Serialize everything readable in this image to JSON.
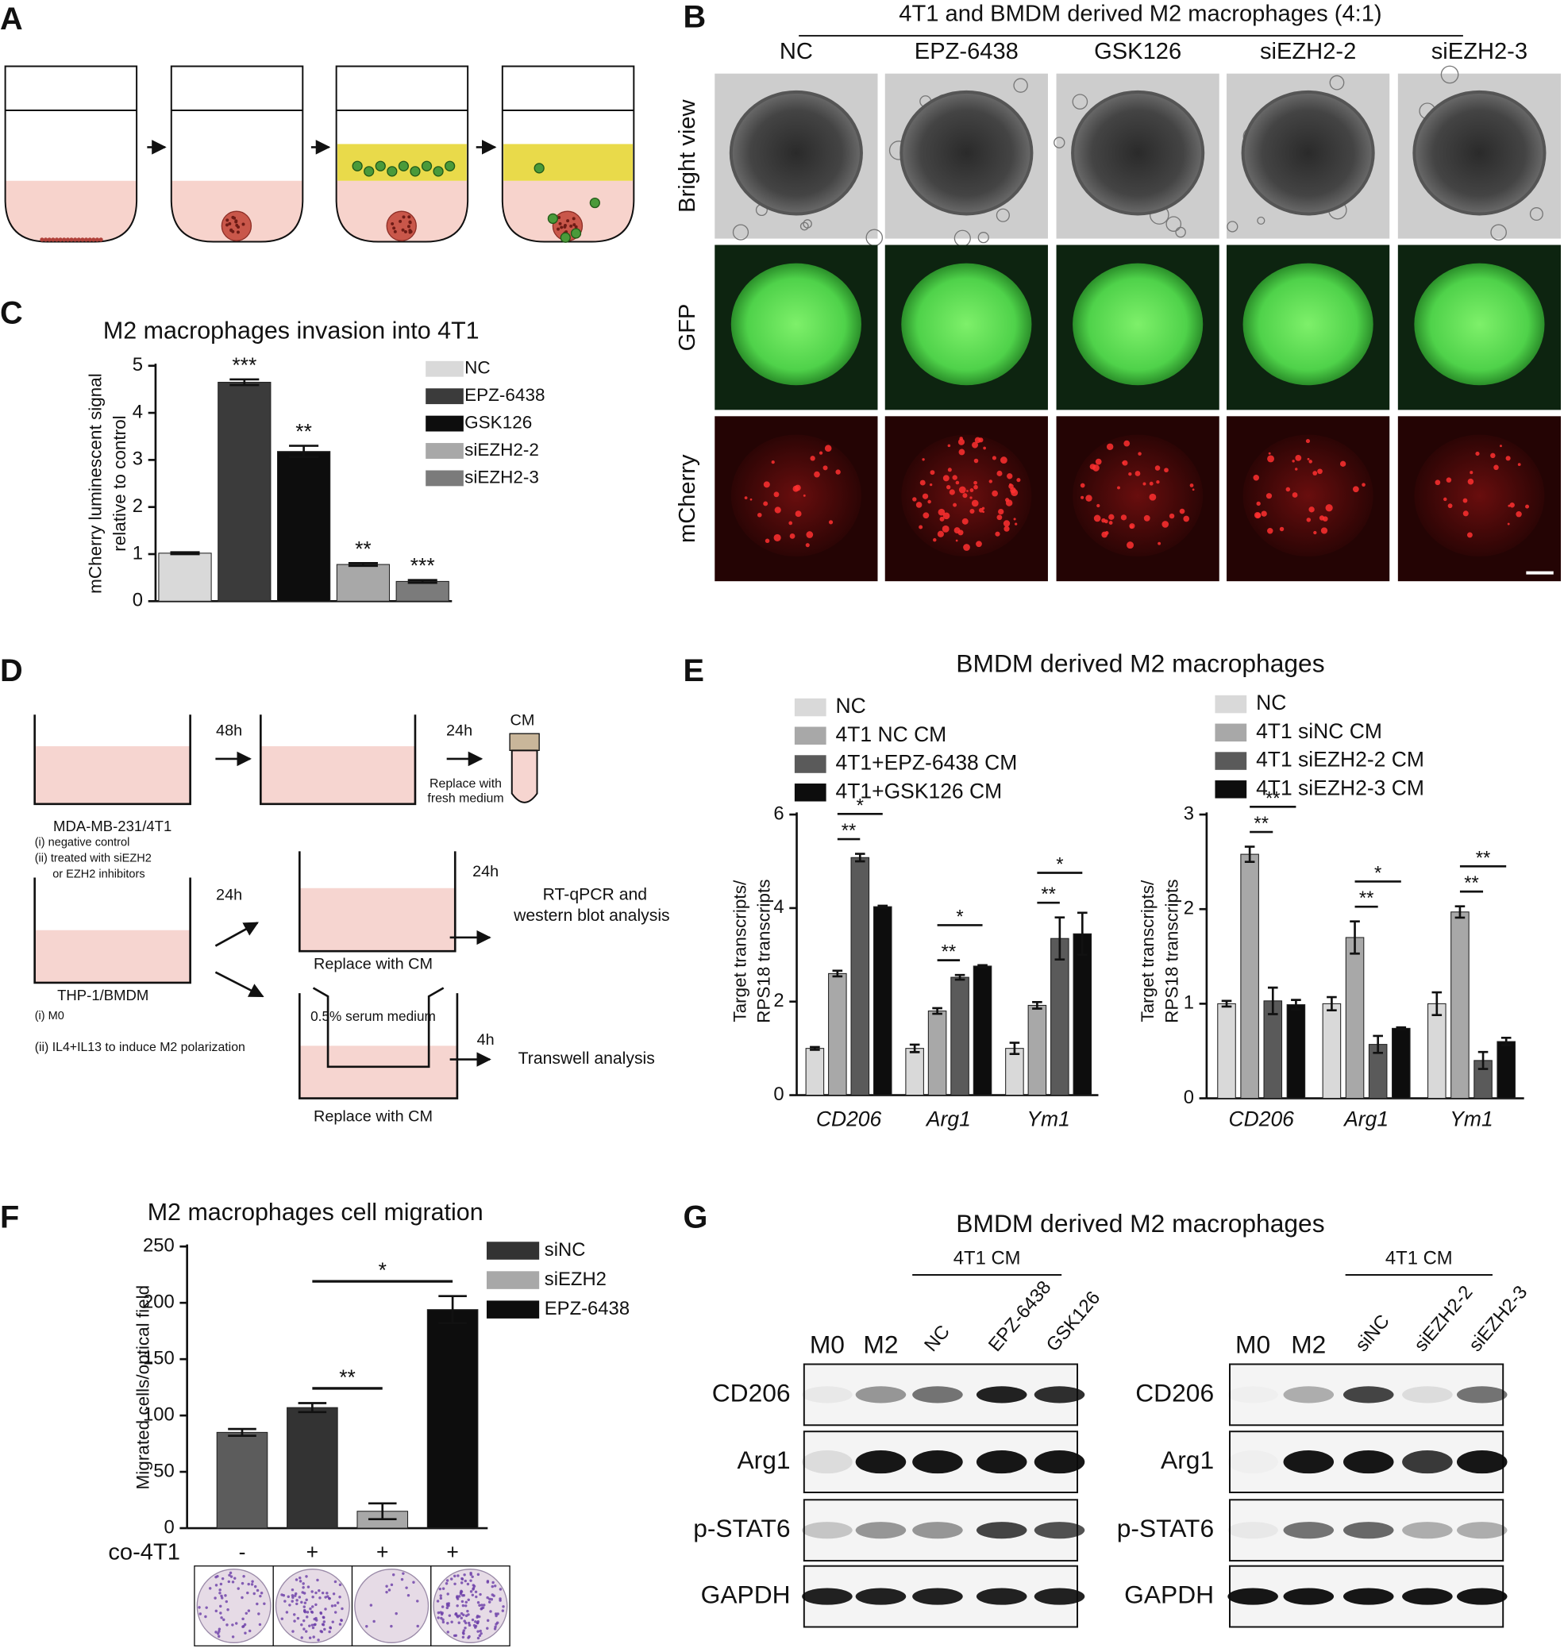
{
  "panel_labels": [
    "A",
    "B",
    "C",
    "D",
    "E",
    "F",
    "G"
  ],
  "panel_b": {
    "title": "4T1 and BMDM derived M2 macrophages (4:1)",
    "columns": [
      "NC",
      "EPZ-6438",
      "GSK126",
      "siEZH2-2",
      "siEZH2-3"
    ],
    "rows": [
      "Bright view",
      "GFP",
      "mCherry"
    ]
  },
  "panel_d": {
    "labels": [
      "48h",
      "24h",
      "CM",
      "Replace with",
      "fresh medium",
      "MDA-MB-231/4T1",
      "(i) negative control",
      "(ii) treated with siEZH2",
      "or EZH2 inhibitors",
      "24h",
      "24h",
      "RT-qPCR and",
      "western blot analysis",
      "Replace with CM",
      "THP-1/BMDM",
      "(i) M0",
      "(ii) IL4+IL13 to induce M2 polarization",
      "0.5% serum medium",
      "4h",
      "Transwell analysis",
      "Replace with CM"
    ]
  },
  "panel_e": {
    "title": "BMDM derived M2 macrophages"
  },
  "panel_g": {
    "title": "BMDM derived M2 macrophages",
    "blots": [
      {
        "group": "4T1 CM",
        "lanes": [
          "M0",
          "M2",
          "NC",
          "EPZ-6438",
          "GSK126"
        ],
        "rows": [
          "CD206",
          "Arg1",
          "p-STAT6",
          "GAPDH"
        ]
      },
      {
        "group": "4T1 CM",
        "lanes": [
          "M0",
          "M2",
          "siNC",
          "siEZH2-2",
          "siEZH2-3"
        ],
        "rows": [
          "CD206",
          "Arg1",
          "p-STAT6",
          "GAPDH"
        ]
      }
    ]
  },
  "chart_data": [
    {
      "type": "bar",
      "title": "M2 macrophages invasion into 4T1",
      "ylabel": [
        "mCherry luminescent signal",
        "relative to control"
      ],
      "categories": [
        null
      ],
      "significance_style": "above_bar",
      "series": [
        {
          "name": "NC",
          "color": "#d9d9d9",
          "values": [
            1.02
          ],
          "errors": [
            0.02
          ]
        },
        {
          "name": "EPZ-6438",
          "color": "#3b3b3b",
          "values": [
            4.65
          ],
          "errors": [
            0.06
          ],
          "significance": [
            "***"
          ]
        },
        {
          "name": "GSK126",
          "color": "#0d0d0d",
          "values": [
            3.18
          ],
          "errors": [
            0.12
          ],
          "significance": [
            "**"
          ]
        },
        {
          "name": "siEZH2-2",
          "color": "#a8a8a8",
          "values": [
            0.78
          ],
          "errors": [
            0.03
          ],
          "significance": [
            "**"
          ]
        },
        {
          "name": "siEZH2-3",
          "color": "#7b7b7b",
          "values": [
            0.42
          ],
          "errors": [
            0.03
          ],
          "significance": [
            "***"
          ]
        }
      ],
      "ylim": [
        0,
        5
      ],
      "yticks": [
        0,
        1,
        2,
        3,
        4,
        5
      ]
    },
    {
      "type": "bar",
      "ylabel": [
        "Target transcripts/",
        "RPS18 transcripts"
      ],
      "categories": [
        "CD206",
        "Arg1",
        "Ym1"
      ],
      "italic_categories": true,
      "significance_style": "bracket",
      "series": [
        {
          "name": "NC",
          "color": "#d9d9d9",
          "values": [
            1.0,
            1.0,
            1.0
          ],
          "errors": [
            0.03,
            0.08,
            0.12
          ]
        },
        {
          "name": "4T1 NC CM",
          "color": "#a8a8a8",
          "values": [
            2.6,
            1.8,
            1.92
          ],
          "errors": [
            0.06,
            0.06,
            0.07
          ]
        },
        {
          "name": "4T1+EPZ-6438 CM",
          "color": "#5a5a5a",
          "values": [
            5.08,
            2.52,
            3.35
          ],
          "errors": [
            0.08,
            0.05,
            0.45
          ],
          "significance": [
            "**",
            "**",
            "**"
          ]
        },
        {
          "name": "4T1+GSK126 CM",
          "color": "#0d0d0d",
          "values": [
            4.03,
            2.76,
            3.45
          ],
          "errors": [
            0.02,
            0.02,
            0.45
          ],
          "significance": [
            "*",
            "*",
            "*"
          ]
        }
      ],
      "ylim": [
        0,
        6
      ],
      "yticks": [
        0,
        2,
        4,
        6
      ]
    },
    {
      "type": "bar",
      "ylabel": [
        "Target transcripts/",
        "RPS18 transcripts"
      ],
      "categories": [
        "CD206",
        "Arg1",
        "Ym1"
      ],
      "italic_categories": true,
      "significance_style": "bracket",
      "series": [
        {
          "name": "NC",
          "color": "#d9d9d9",
          "values": [
            1.0,
            1.0,
            1.0
          ],
          "errors": [
            0.03,
            0.07,
            0.12
          ]
        },
        {
          "name": "4T1 siNC CM",
          "color": "#a8a8a8",
          "values": [
            2.58,
            1.7,
            1.97
          ],
          "errors": [
            0.08,
            0.17,
            0.06
          ]
        },
        {
          "name": "4T1 siEZH2-2 CM",
          "color": "#5a5a5a",
          "values": [
            1.03,
            0.57,
            0.4
          ],
          "errors": [
            0.14,
            0.09,
            0.09
          ],
          "significance": [
            "**",
            "**",
            "**"
          ]
        },
        {
          "name": "4T1 siEZH2-3 CM",
          "color": "#0d0d0d",
          "values": [
            0.99,
            0.74,
            0.6
          ],
          "errors": [
            0.05,
            0.01,
            0.04
          ],
          "significance": [
            "**",
            "*",
            "**"
          ]
        }
      ],
      "ylim": [
        0,
        3
      ],
      "yticks": [
        0,
        1,
        2,
        3
      ]
    },
    {
      "type": "bar",
      "title": "M2 macrophages cell migration",
      "ylabel": [
        "Migrated cells/optical field"
      ],
      "xlabel": "co-4T1",
      "categories": [
        "-",
        "+",
        "+",
        "+"
      ],
      "significance_style": "bracket",
      "values": [
        85,
        107,
        15,
        194
      ],
      "errors": [
        3,
        4,
        7,
        12
      ],
      "colors": [
        "#5c5c5c",
        "#333333",
        "#a8a8a8",
        "#0d0d0d"
      ],
      "significance": [
        null,
        null,
        "**",
        "*"
      ],
      "legend": [
        {
          "name": "siNC",
          "color": "#333333"
        },
        {
          "name": "siEZH2",
          "color": "#a8a8a8"
        },
        {
          "name": "EPZ-6438",
          "color": "#0d0d0d"
        }
      ],
      "ylim": [
        0,
        250
      ],
      "yticks": [
        0,
        50,
        100,
        150,
        200,
        250
      ]
    }
  ]
}
